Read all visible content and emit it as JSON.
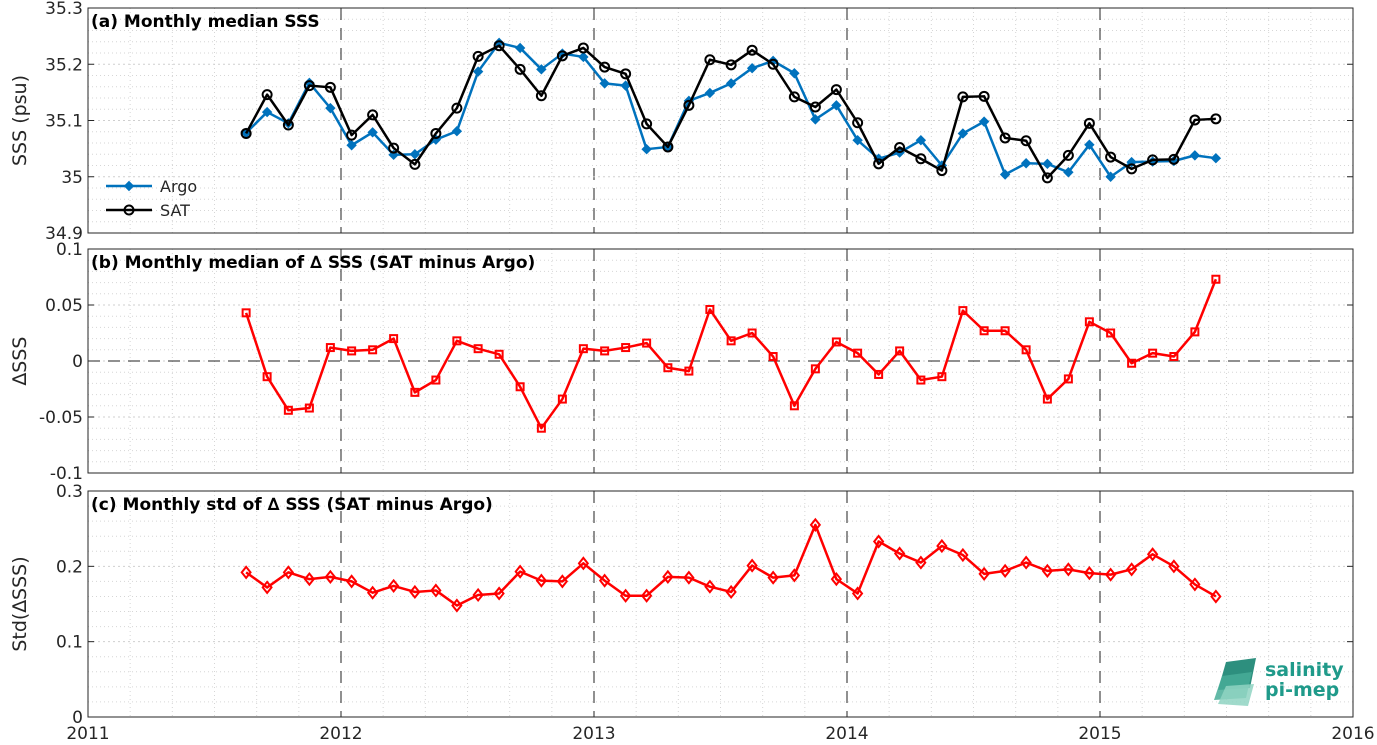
{
  "chart_data": [
    {
      "type": "line",
      "title": "(a) Monthly median SSS",
      "ylabel": "SSS (psu)",
      "xlim": [
        2011,
        2016
      ],
      "ylim": [
        34.9,
        35.3
      ],
      "yticks": [
        "34.9",
        "35",
        "35.1",
        "35.2",
        "35.3"
      ],
      "grid": true,
      "legend": "bottom-left",
      "x": [
        2011.625,
        2011.708,
        2011.792,
        2011.875,
        2011.958,
        2012.042,
        2012.125,
        2012.208,
        2012.292,
        2012.375,
        2012.458,
        2012.542,
        2012.625,
        2012.708,
        2012.792,
        2012.875,
        2012.958,
        2013.042,
        2013.125,
        2013.208,
        2013.292,
        2013.375,
        2013.458,
        2013.542,
        2013.625,
        2013.708,
        2013.792,
        2013.875,
        2013.958,
        2014.042,
        2014.125,
        2014.208,
        2014.292,
        2014.375,
        2014.458,
        2014.542,
        2014.625,
        2014.708,
        2014.792,
        2014.875,
        2014.958,
        2015.042,
        2015.125,
        2015.208,
        2015.292,
        2015.375,
        2015.458
      ],
      "series": [
        {
          "name": "Argo",
          "color": "#0072bd",
          "marker": "diamond",
          "values": [
            35.078,
            35.115,
            35.095,
            35.167,
            35.122,
            35.056,
            35.079,
            35.039,
            35.04,
            35.066,
            35.081,
            35.187,
            35.238,
            35.229,
            35.191,
            35.219,
            35.213,
            35.166,
            35.162,
            35.049,
            35.053,
            35.135,
            35.149,
            35.166,
            35.193,
            35.206,
            35.184,
            35.102,
            35.127,
            35.065,
            35.032,
            35.043,
            35.065,
            35.02,
            35.077,
            35.098,
            35.004,
            35.024,
            35.023,
            35.008,
            35.057,
            35.0,
            35.026,
            35.027,
            35.028,
            35.038,
            35.033
          ]
        },
        {
          "name": "SAT",
          "color": "#000000",
          "marker": "circle",
          "values": [
            35.077,
            35.146,
            35.092,
            35.162,
            35.159,
            35.074,
            35.11,
            35.051,
            35.022,
            35.077,
            35.122,
            35.214,
            35.233,
            35.191,
            35.144,
            35.215,
            35.229,
            35.195,
            35.183,
            35.094,
            35.053,
            35.127,
            35.208,
            35.199,
            35.225,
            35.2,
            35.142,
            35.124,
            35.155,
            35.096,
            35.023,
            35.052,
            35.032,
            35.011,
            35.142,
            35.143,
            35.069,
            35.064,
            34.998,
            35.038,
            35.095,
            35.035,
            35.014,
            35.03,
            35.031,
            35.101,
            35.103
          ]
        }
      ]
    },
    {
      "type": "line",
      "title": "(b) Monthly median of ∆ SSS (SAT minus Argo)",
      "ylabel": "∆SSS",
      "xlim": [
        2011,
        2016
      ],
      "ylim": [
        -0.1,
        0.1
      ],
      "yticks": [
        "-0.1",
        "-0.05",
        "0",
        "0.05",
        "0.1"
      ],
      "grid": true,
      "zero_line": true,
      "x": [
        2011.625,
        2011.708,
        2011.792,
        2011.875,
        2011.958,
        2012.042,
        2012.125,
        2012.208,
        2012.292,
        2012.375,
        2012.458,
        2012.542,
        2012.625,
        2012.708,
        2012.792,
        2012.875,
        2012.958,
        2013.042,
        2013.125,
        2013.208,
        2013.292,
        2013.375,
        2013.458,
        2013.542,
        2013.625,
        2013.708,
        2013.792,
        2013.875,
        2013.958,
        2014.042,
        2014.125,
        2014.208,
        2014.292,
        2014.375,
        2014.458,
        2014.542,
        2014.625,
        2014.708,
        2014.792,
        2014.875,
        2014.958,
        2015.042,
        2015.125,
        2015.208,
        2015.292,
        2015.375,
        2015.458
      ],
      "series": [
        {
          "color": "#ff0000",
          "marker": "square",
          "values": [
            0.043,
            -0.014,
            -0.044,
            -0.042,
            0.012,
            0.009,
            0.01,
            0.02,
            -0.028,
            -0.017,
            0.018,
            0.011,
            0.006,
            -0.023,
            -0.06,
            -0.034,
            0.011,
            0.009,
            0.012,
            0.016,
            -0.006,
            -0.009,
            0.046,
            0.018,
            0.025,
            0.004,
            -0.04,
            -0.007,
            0.017,
            0.007,
            -0.012,
            0.009,
            -0.017,
            -0.014,
            0.045,
            0.027,
            0.027,
            0.01,
            -0.034,
            -0.016,
            0.035,
            0.025,
            -0.002,
            0.007,
            0.004,
            0.026,
            0.073
          ]
        }
      ]
    },
    {
      "type": "line",
      "title": "(c) Monthly std of ∆ SSS (SAT minus Argo)",
      "ylabel": "Std(∆SSS)",
      "xlim": [
        2011,
        2016
      ],
      "ylim": [
        0,
        0.3
      ],
      "yticks": [
        "0",
        "0.1",
        "0.2",
        "0.3"
      ],
      "xticks": [
        "2011",
        "2012",
        "2013",
        "2014",
        "2015",
        "2016"
      ],
      "grid": true,
      "x": [
        2011.625,
        2011.708,
        2011.792,
        2011.875,
        2011.958,
        2012.042,
        2012.125,
        2012.208,
        2012.292,
        2012.375,
        2012.458,
        2012.542,
        2012.625,
        2012.708,
        2012.792,
        2012.875,
        2012.958,
        2013.042,
        2013.125,
        2013.208,
        2013.292,
        2013.375,
        2013.458,
        2013.542,
        2013.625,
        2013.708,
        2013.792,
        2013.875,
        2013.958,
        2014.042,
        2014.125,
        2014.208,
        2014.292,
        2014.375,
        2014.458,
        2014.542,
        2014.625,
        2014.708,
        2014.792,
        2014.875,
        2014.958,
        2015.042,
        2015.125,
        2015.208,
        2015.292,
        2015.375,
        2015.458
      ],
      "series": [
        {
          "color": "#ff0000",
          "marker": "diamond",
          "values": [
            0.192,
            0.172,
            0.192,
            0.183,
            0.186,
            0.18,
            0.165,
            0.174,
            0.166,
            0.168,
            0.148,
            0.162,
            0.164,
            0.193,
            0.181,
            0.18,
            0.204,
            0.181,
            0.161,
            0.161,
            0.186,
            0.185,
            0.173,
            0.166,
            0.201,
            0.185,
            0.188,
            0.255,
            0.183,
            0.164,
            0.233,
            0.217,
            0.205,
            0.227,
            0.215,
            0.19,
            0.194,
            0.205,
            0.194,
            0.196,
            0.191,
            0.189,
            0.196,
            0.216,
            0.2,
            0.176,
            0.16
          ]
        }
      ]
    }
  ],
  "logo": {
    "line1": "salinity",
    "line2": "pi-mep"
  }
}
